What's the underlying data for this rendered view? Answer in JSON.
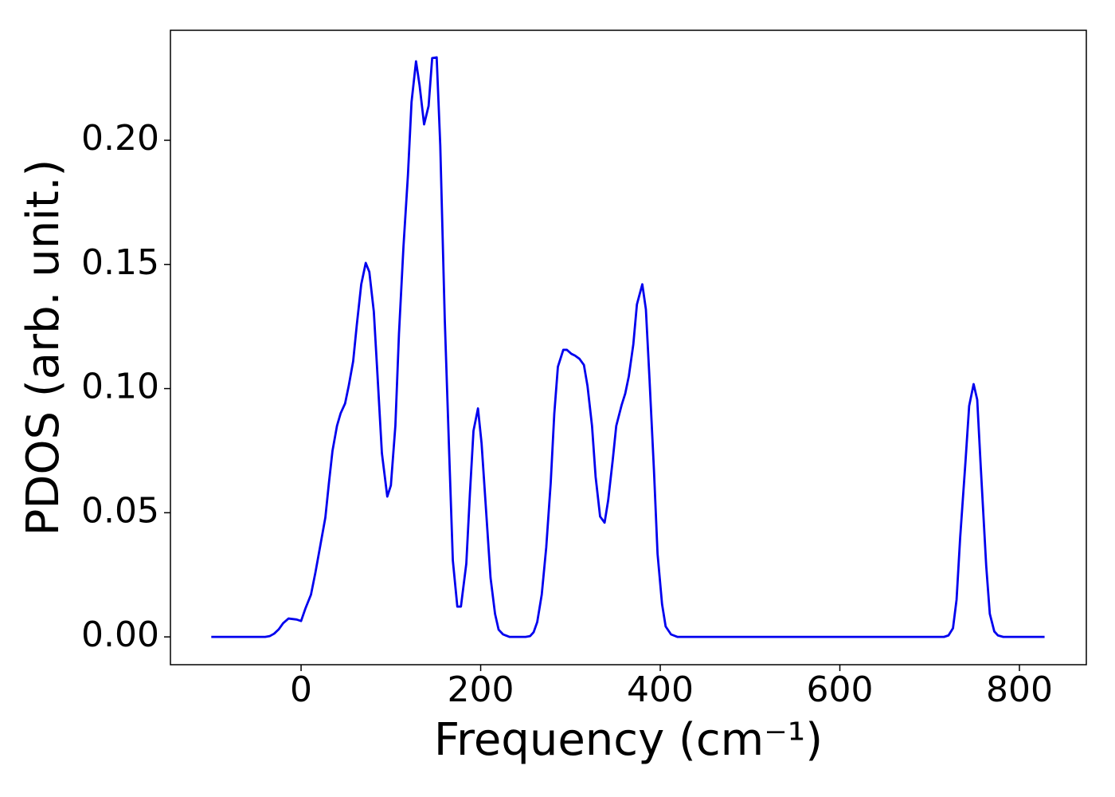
{
  "chart_data": {
    "type": "line",
    "x_label": "Frequency (cm⁻¹)",
    "y_label": "PDOS (arb. unit.)",
    "xlim": [
      -145.5,
      874.5
    ],
    "ylim": [
      -0.0112,
      0.2443
    ],
    "xticks": [
      0,
      200,
      400,
      600,
      800
    ],
    "yticks": [
      {
        "value": 0,
        "label": "0.00"
      },
      {
        "value": 0.05,
        "label": "0.05"
      },
      {
        "value": 0.1,
        "label": "0.10"
      },
      {
        "value": 0.15,
        "label": "0.15"
      },
      {
        "value": 0.2,
        "label": "0.20"
      }
    ],
    "grid": false,
    "series": [
      {
        "color": "#0000ee",
        "x": [
          -100,
          -40,
          -35,
          -30,
          -25,
          -20,
          -14,
          -5,
          0,
          5,
          11,
          16,
          21,
          27,
          31,
          35,
          40,
          44,
          49,
          53,
          58,
          62,
          67,
          72,
          76,
          81,
          85,
          90,
          96,
          100,
          105,
          109,
          114,
          119,
          123,
          128,
          132,
          137,
          142,
          146,
          151,
          155,
          160,
          165,
          169,
          174,
          178,
          184,
          188,
          192,
          197,
          201,
          206,
          211,
          216,
          220,
          225,
          232,
          250,
          255,
          259,
          263,
          268,
          273,
          278,
          282,
          286,
          292,
          296,
          301,
          305,
          310,
          315,
          319,
          324,
          328,
          333,
          338,
          342,
          347,
          351,
          357,
          361,
          365,
          370,
          374,
          380,
          384,
          388,
          393,
          397,
          402,
          406,
          412,
          419,
          716,
          721,
          726,
          730,
          734,
          740,
          744,
          749,
          753,
          757,
          763,
          767,
          772,
          776,
          782,
          828
        ],
        "values": [
          0,
          0,
          0.0003,
          0.0013,
          0.003,
          0.0055,
          0.0074,
          0.007,
          0.0064,
          0.0116,
          0.017,
          0.026,
          0.036,
          0.048,
          0.062,
          0.075,
          0.085,
          0.09,
          0.094,
          0.101,
          0.111,
          0.1255,
          0.142,
          0.1506,
          0.147,
          0.131,
          0.106,
          0.074,
          0.0565,
          0.061,
          0.085,
          0.122,
          0.157,
          0.186,
          0.2154,
          0.2318,
          0.222,
          0.2064,
          0.2138,
          0.2331,
          0.2334,
          0.198,
          0.128,
          0.0735,
          0.0308,
          0.0122,
          0.0122,
          0.0295,
          0.0575,
          0.083,
          0.092,
          0.078,
          0.051,
          0.0238,
          0.0093,
          0.0029,
          0.001,
          0,
          0,
          0.0003,
          0.0019,
          0.006,
          0.017,
          0.036,
          0.062,
          0.09,
          0.1088,
          0.1156,
          0.1156,
          0.114,
          0.1133,
          0.112,
          0.1095,
          0.101,
          0.085,
          0.0645,
          0.0485,
          0.046,
          0.055,
          0.071,
          0.085,
          0.0934,
          0.098,
          0.105,
          0.1178,
          0.1339,
          0.142,
          0.1319,
          0.104,
          0.067,
          0.0334,
          0.0132,
          0.0042,
          0.001,
          0,
          0,
          0.0006,
          0.0035,
          0.015,
          0.04,
          0.071,
          0.093,
          0.1018,
          0.0955,
          0.068,
          0.0286,
          0.0093,
          0.0022,
          0.0006,
          0,
          0
        ]
      }
    ]
  }
}
